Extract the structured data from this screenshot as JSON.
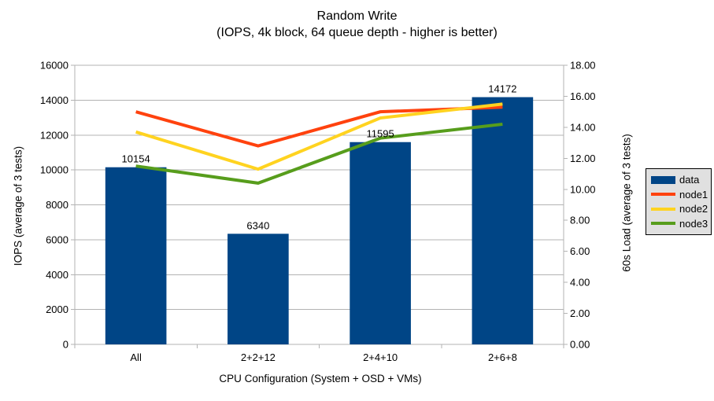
{
  "chart_data": {
    "type": "bar+line combo",
    "title": "Random Write",
    "subtitle": "(IOPS, 4k block, 64 queue depth - higher is better)",
    "categories": [
      "All",
      "2+2+12",
      "2+4+10",
      "2+6+8"
    ],
    "x_axis": {
      "title": "CPU Configuration (System + OSD + VMs)"
    },
    "left_axis": {
      "title": "IOPS (average of 3 tests)",
      "min": 0,
      "max": 16000,
      "step": 2000,
      "tick_labels": [
        "0",
        "2000",
        "4000",
        "6000",
        "8000",
        "10000",
        "12000",
        "14000",
        "16000"
      ]
    },
    "right_axis": {
      "title": "60s Load (average of 3 tests)",
      "min": 0,
      "max": 18,
      "step": 2,
      "tick_labels": [
        "0.00",
        "2.00",
        "4.00",
        "6.00",
        "8.00",
        "10.00",
        "12.00",
        "14.00",
        "16.00",
        "18.00"
      ]
    },
    "series": [
      {
        "name": "data",
        "type": "bar",
        "axis": "left",
        "color": "#004586",
        "values": [
          10154,
          6340,
          11595,
          14172
        ],
        "labels": [
          "10154",
          "6340",
          "11595",
          "14172"
        ]
      },
      {
        "name": "node1",
        "type": "line",
        "axis": "right",
        "color": "#FF420E",
        "values": [
          15.0,
          12.8,
          15.0,
          15.3
        ]
      },
      {
        "name": "node2",
        "type": "line",
        "axis": "right",
        "color": "#FFD320",
        "values": [
          13.7,
          11.3,
          14.6,
          15.5
        ]
      },
      {
        "name": "node3",
        "type": "line",
        "axis": "right",
        "color": "#579D1C",
        "values": [
          11.5,
          10.4,
          13.3,
          14.2
        ]
      }
    ],
    "legend": {
      "position": "right",
      "entries": [
        "data",
        "node1",
        "node2",
        "node3"
      ]
    },
    "grid": {
      "horizontal": true,
      "vertical": false
    }
  },
  "style": {
    "background": "#ffffff",
    "grid_color": "#b3b3b3",
    "axis_color": "#b3b3b3",
    "text_color": "#000000",
    "legend_background": "#e0e0e0",
    "legend_border": "#000000"
  }
}
